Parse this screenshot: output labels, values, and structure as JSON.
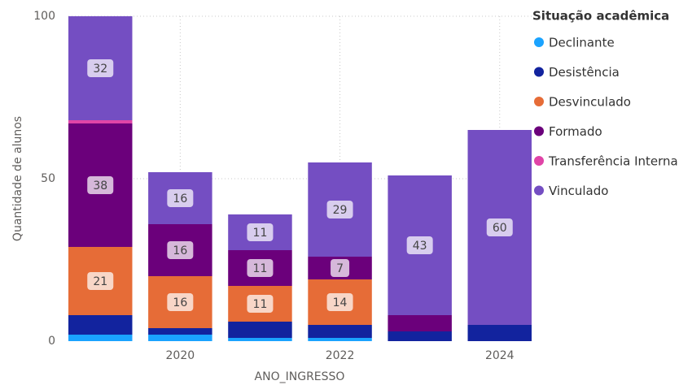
{
  "chart_data": {
    "type": "stacked_bar",
    "x_label": "ANO_INGRESSO",
    "y_label": "Quantidade de alunos",
    "x": [
      2019,
      2020,
      2021,
      2022,
      2023,
      2024
    ],
    "xlim": [
      2018.6,
      2024.4
    ],
    "xticks": [
      2020,
      2022,
      2024
    ],
    "ylim": [
      0,
      100
    ],
    "yticks": [
      0,
      50,
      100
    ],
    "grid": true,
    "legend_title": "Situação acadêmica",
    "legend_position": "right",
    "series": [
      {
        "name": "Declinante",
        "color": "#1aa3ff",
        "values": [
          2,
          2,
          1,
          1,
          null,
          null
        ]
      },
      {
        "name": "Desistência",
        "color": "#12239e",
        "values": [
          6,
          2,
          5,
          4,
          3,
          5
        ]
      },
      {
        "name": "Desvinculado",
        "color": "#e66c37",
        "values": [
          21,
          16,
          11,
          14,
          null,
          null
        ]
      },
      {
        "name": "Formado",
        "color": "#6b007b",
        "values": [
          38,
          16,
          11,
          7,
          5,
          null
        ]
      },
      {
        "name": "Transferência Interna",
        "color": "#e044a7",
        "values": [
          1,
          null,
          null,
          null,
          null,
          null
        ]
      },
      {
        "name": "Vinculado",
        "color": "#744ec2",
        "values": [
          32,
          16,
          11,
          29,
          43,
          60
        ]
      }
    ]
  }
}
